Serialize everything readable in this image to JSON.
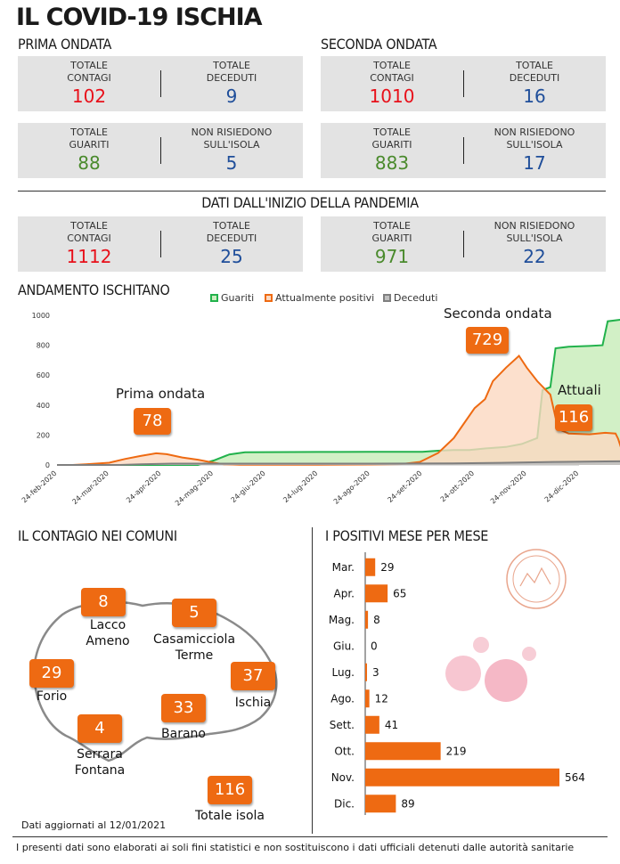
{
  "title": "IL COVID-19 ISCHIA",
  "prima": {
    "heading": "PRIMA ONDATA",
    "totale_contagi_label": "TOTALE\nCONTAGI",
    "totale_contagi": "102",
    "totale_deceduti_label": "TOTALE\nDECEDUTI",
    "totale_deceduti": "9",
    "totale_guariti_label": "TOTALE\nGUARITI",
    "totale_guariti": "88",
    "non_risiedono_label": "NON RISIEDONO\nSULL'ISOLA",
    "non_risiedono": "5"
  },
  "seconda": {
    "heading": "SECONDA ONDATA",
    "totale_contagi_label": "TOTALE\nCONTAGI",
    "totale_contagi": "1010",
    "totale_deceduti_label": "TOTALE\nDECEDUTI",
    "totale_deceduti": "16",
    "totale_guariti_label": "TOTALE\nGUARITI",
    "totale_guariti": "883",
    "non_risiedono_label": "NON RISIEDONO\nSULL'ISOLA",
    "non_risiedono": "17"
  },
  "pandemia": {
    "heading": "DATI DALL'INIZIO DELLA PANDEMIA",
    "totale_contagi_label": "TOTALE\nCONTAGI",
    "totale_contagi": "1112",
    "totale_deceduti_label": "TOTALE\nDECEDUTI",
    "totale_deceduti": "25",
    "totale_guariti_label": "TOTALE\nGUARITI",
    "totale_guariti": "971",
    "non_risiedono_label": "NON RISIEDONO\nSULL'ISOLA",
    "non_risiedono": "22"
  },
  "colors": {
    "accent": "#ee6a12",
    "red": "#e8101a",
    "blue": "#1f4e9a",
    "green": "#4a8a2c",
    "guariti": "#22b24c",
    "deceduti": "#7f7f7f"
  },
  "chart_data": [
    {
      "type": "area",
      "title": "ANDAMENTO ISCHITANO",
      "ylim": [
        0,
        1000
      ],
      "yticks": [
        0,
        200,
        400,
        600,
        800,
        1000
      ],
      "xlabels": [
        "24-feb-2020",
        "24-mar-2020",
        "24-apr-2020",
        "24-mag-2020",
        "24-giu-2020",
        "24-lug-2020",
        "24-ago-2020",
        "24-set-2020",
        "24-ott-2020",
        "24-nov-2020",
        "24-dic-2020"
      ],
      "legend": [
        "Guariti",
        "Attualmente positivi",
        "Deceduti"
      ],
      "legend_position": "top",
      "annotations": [
        {
          "text": "Prima ondata",
          "value": "78"
        },
        {
          "text": "Seconda ondata",
          "value": "729"
        },
        {
          "text": "Attuali",
          "value": "116"
        }
      ],
      "series": [
        {
          "name": "Attualmente positivi",
          "points": [
            [
              0,
              0
            ],
            [
              0.3,
              0
            ],
            [
              0.55,
              5
            ],
            [
              1.0,
              15
            ],
            [
              1.3,
              40
            ],
            [
              1.6,
              60
            ],
            [
              1.9,
              78
            ],
            [
              2.1,
              72
            ],
            [
              2.4,
              50
            ],
            [
              2.7,
              35
            ],
            [
              3.0,
              15
            ],
            [
              3.2,
              5
            ],
            [
              3.5,
              2
            ],
            [
              4,
              2
            ],
            [
              5,
              2
            ],
            [
              6,
              3
            ],
            [
              6.6,
              6
            ],
            [
              6.95,
              20
            ],
            [
              7.3,
              80
            ],
            [
              7.6,
              180
            ],
            [
              7.8,
              280
            ],
            [
              8.0,
              380
            ],
            [
              8.2,
              440
            ],
            [
              8.35,
              560
            ],
            [
              8.6,
              650
            ],
            [
              8.85,
              729
            ],
            [
              9.0,
              650
            ],
            [
              9.2,
              560
            ],
            [
              9.45,
              470
            ],
            [
              9.6,
              240
            ],
            [
              9.8,
              210
            ],
            [
              10.2,
              205
            ],
            [
              10.5,
              215
            ],
            [
              10.7,
              210
            ],
            [
              10.75,
              175
            ],
            [
              10.8,
              120
            ],
            [
              10.9,
              116
            ],
            [
              11.0,
              116
            ]
          ]
        },
        {
          "name": "Guariti",
          "points": [
            [
              0,
              0
            ],
            [
              2.7,
              0
            ],
            [
              3.0,
              30
            ],
            [
              3.3,
              70
            ],
            [
              3.6,
              85
            ],
            [
              4.0,
              86
            ],
            [
              5.0,
              87
            ],
            [
              6.0,
              88
            ],
            [
              7.0,
              88
            ],
            [
              7.3,
              95
            ],
            [
              7.6,
              100
            ],
            [
              7.9,
              100
            ],
            [
              8.2,
              110
            ],
            [
              8.6,
              120
            ],
            [
              8.9,
              140
            ],
            [
              9.2,
              180
            ],
            [
              9.3,
              500
            ],
            [
              9.45,
              520
            ],
            [
              9.55,
              780
            ],
            [
              9.8,
              790
            ],
            [
              10.2,
              795
            ],
            [
              10.45,
              800
            ],
            [
              10.55,
              960
            ],
            [
              10.8,
              971
            ],
            [
              11.0,
              971
            ]
          ]
        },
        {
          "name": "Deceduti",
          "points": [
            [
              0,
              0
            ],
            [
              1.2,
              0
            ],
            [
              1.6,
              5
            ],
            [
              2.2,
              9
            ],
            [
              4,
              9
            ],
            [
              6,
              9
            ],
            [
              7.5,
              10
            ],
            [
              8.5,
              14
            ],
            [
              9.5,
              20
            ],
            [
              10.5,
              24
            ],
            [
              11.0,
              25
            ]
          ]
        }
      ]
    },
    {
      "type": "bar",
      "title": "I POSITIVI MESE PER MESE",
      "categories": [
        "Mar.",
        "Apr.",
        "Mag.",
        "Giu.",
        "Lug.",
        "Ago.",
        "Sett.",
        "Ott.",
        "Nov.",
        "Dic."
      ],
      "values": [
        29,
        65,
        8,
        0,
        3,
        12,
        41,
        219,
        564,
        89
      ],
      "orientation": "horizontal"
    }
  ],
  "comuni": {
    "heading": "IL CONTAGIO NEI COMUNI",
    "items": [
      {
        "name": "Lacco Ameno",
        "value": "8"
      },
      {
        "name": "Casamicciola\nTerme",
        "value": "5"
      },
      {
        "name": "Forio",
        "value": "29"
      },
      {
        "name": "Ischia",
        "value": "37"
      },
      {
        "name": "Barano",
        "value": "33"
      },
      {
        "name": "Serrara\nFontana",
        "value": "4"
      },
      {
        "name": "Totale isola",
        "value": "116"
      }
    ],
    "updated": "Dati aggiornati al 12/01/2021"
  },
  "footer": "I presenti dati sono elaborati ai soli fini statistici e non sostituiscono i dati ufficiali detenuti dalle autorità sanitarie"
}
